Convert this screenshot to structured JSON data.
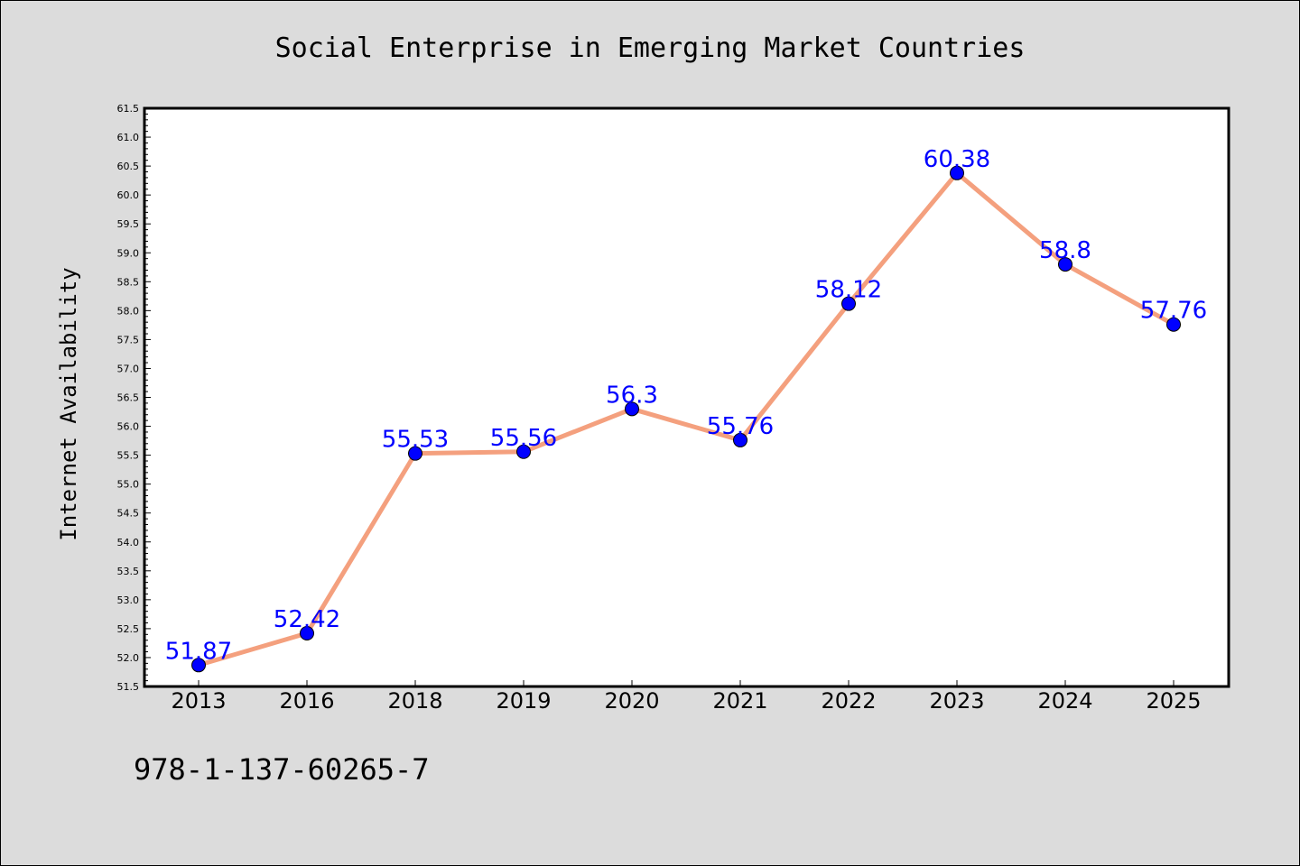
{
  "colors": {
    "background": "#dcdcdc",
    "plot_background": "#ffffff",
    "line": "#f4a07e",
    "marker": "#0000ff",
    "label": "#0000ff"
  },
  "chart_data": {
    "type": "line",
    "title": "Social Enterprise in Emerging Market Countries",
    "xlabel": "",
    "ylabel": "Internet Availability",
    "categories": [
      "2013",
      "2016",
      "2018",
      "2019",
      "2020",
      "2021",
      "2022",
      "2023",
      "2024",
      "2025"
    ],
    "values": [
      51.87,
      52.42,
      55.53,
      55.56,
      56.3,
      55.76,
      58.12,
      60.38,
      58.8,
      57.76
    ],
    "value_labels": [
      "51.87",
      "52.42",
      "55.53",
      "55.56",
      "56.3",
      "55.76",
      "58.12",
      "60.38",
      "58.8",
      "57.76"
    ],
    "ylim": [
      51.5,
      61.5
    ],
    "yticks": [
      "51.5",
      "52.0",
      "52.5",
      "53.0",
      "53.5",
      "54.0",
      "54.5",
      "55.0",
      "55.5",
      "56.0",
      "56.5",
      "57.0",
      "57.5",
      "58.0",
      "58.5",
      "59.0",
      "59.5",
      "60.0",
      "60.5",
      "61.0",
      "61.5"
    ],
    "grid": false,
    "legend": "none"
  },
  "footer": {
    "isbn": "978-1-137-60265-7"
  }
}
